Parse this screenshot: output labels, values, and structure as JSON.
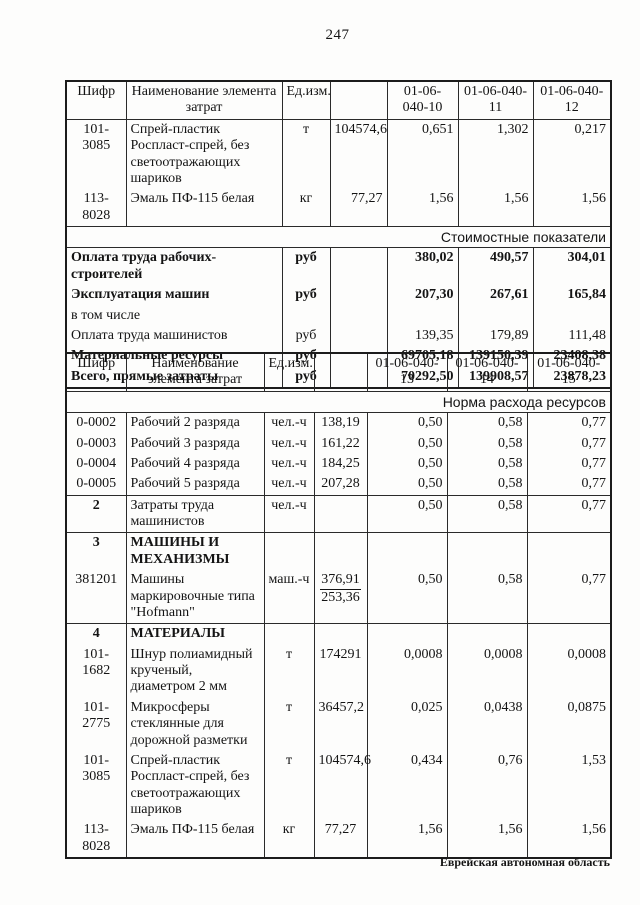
{
  "page": {
    "number": "247",
    "footer": "Еврейская автономная область"
  },
  "table1": {
    "header": {
      "code": "Шифр",
      "name": "Наименование элемента затрат",
      "unit": "Ед.изм.",
      "qty": "",
      "n1": "01-06-040-10",
      "n2": "01-06-040-11",
      "n3": "01-06-040-12"
    },
    "rows": [
      {
        "code": "101-3085",
        "name": "Спрей-пластик Роспласт-спрей, без светоотражающих шариков",
        "unit": "т",
        "qty": "104574,6",
        "v1": "0,651",
        "v2": "1,302",
        "v3": "0,217"
      },
      {
        "code": "113-8028",
        "name": "Эмаль ПФ-115 белая",
        "unit": "кг",
        "qty": "77,27",
        "v1": "1,56",
        "v2": "1,56",
        "v3": "1,56"
      }
    ],
    "band": "Стоимостные показатели",
    "cost_rows": [
      {
        "name": "Оплата труда рабочих-строителей",
        "unit": "руб",
        "v1": "380,02",
        "v2": "490,57",
        "v3": "304,01"
      },
      {
        "name": "Эксплуатация машин",
        "unit": "руб",
        "v1": "207,30",
        "v2": "267,61",
        "v3": "165,84"
      },
      {
        "name": "в том числе",
        "unit": "",
        "v1": "",
        "v2": "",
        "v3": ""
      },
      {
        "name": "Оплата труда машинистов",
        "unit": "руб",
        "v1": "139,35",
        "v2": "179,89",
        "v3": "111,48"
      },
      {
        "name": "Материальные ресурсы",
        "unit": "руб",
        "v1": "69705,18",
        "v2": "139150,39",
        "v3": "23408,38"
      },
      {
        "name": "Всего, прямые затраты",
        "unit": "руб",
        "v1": "70292,50",
        "v2": "139908,57",
        "v3": "23878,23"
      }
    ]
  },
  "table2": {
    "header": {
      "code": "Шифр",
      "name": "Наименование элемента затрат",
      "unit": "Ед.изм.",
      "qty": "",
      "n1": "01-06-040-13",
      "n2": "01-06-040-14",
      "n3": "01-06-040-15"
    },
    "band": "Норма расхода ресурсов",
    "rows": [
      {
        "code": "0-0002",
        "name": "Рабочий 2 разряда",
        "unit": "чел.-ч",
        "qty": "138,19",
        "v1": "0,50",
        "v2": "0,58",
        "v3": "0,77"
      },
      {
        "code": "0-0003",
        "name": "Рабочий 3 разряда",
        "unit": "чел.-ч",
        "qty": "161,22",
        "v1": "0,50",
        "v2": "0,58",
        "v3": "0,77"
      },
      {
        "code": "0-0004",
        "name": "Рабочий 4 разряда",
        "unit": "чел.-ч",
        "qty": "184,25",
        "v1": "0,50",
        "v2": "0,58",
        "v3": "0,77"
      },
      {
        "code": "0-0005",
        "name": "Рабочий 5 разряда",
        "unit": "чел.-ч",
        "qty": "207,28",
        "v1": "0,50",
        "v2": "0,58",
        "v3": "0,77"
      },
      {
        "code": "2",
        "name": "Затраты труда машинистов",
        "unit": "чел.-ч",
        "qty": "",
        "v1": "0,50",
        "v2": "0,58",
        "v3": "0,77"
      },
      {
        "code": "3",
        "name": "МАШИНЫ И МЕХАНИЗМЫ",
        "unit": "",
        "qty": "",
        "v1": "",
        "v2": "",
        "v3": ""
      },
      {
        "code": "381201",
        "name": "Машины маркировочные типа \"Hofmann\"",
        "unit": "маш.-ч",
        "qty_top": "376,91",
        "qty_bottom": "253,36",
        "v1": "0,50",
        "v2": "0,58",
        "v3": "0,77"
      },
      {
        "code": "4",
        "name": "МАТЕРИАЛЫ",
        "unit": "",
        "qty": "",
        "v1": "",
        "v2": "",
        "v3": ""
      },
      {
        "code": "101-1682",
        "name": "Шнур полиамидный крученый, диаметром 2 мм",
        "unit": "т",
        "qty": "174291",
        "v1": "0,0008",
        "v2": "0,0008",
        "v3": "0,0008"
      },
      {
        "code": "101-2775",
        "name": "Микросферы стеклянные для дорожной разметки",
        "unit": "т",
        "qty": "36457,2",
        "v1": "0,025",
        "v2": "0,0438",
        "v3": "0,0875"
      },
      {
        "code": "101-3085",
        "name": "Спрей-пластик Роспласт-спрей, без светоотражающих шариков",
        "unit": "т",
        "qty": "104574,6",
        "v1": "0,434",
        "v2": "0,76",
        "v3": "1,53"
      },
      {
        "code": "113-8028",
        "name": "Эмаль ПФ-115 белая",
        "unit": "кг",
        "qty": "77,27",
        "v1": "1,56",
        "v2": "1,56",
        "v3": "1,56"
      }
    ]
  }
}
